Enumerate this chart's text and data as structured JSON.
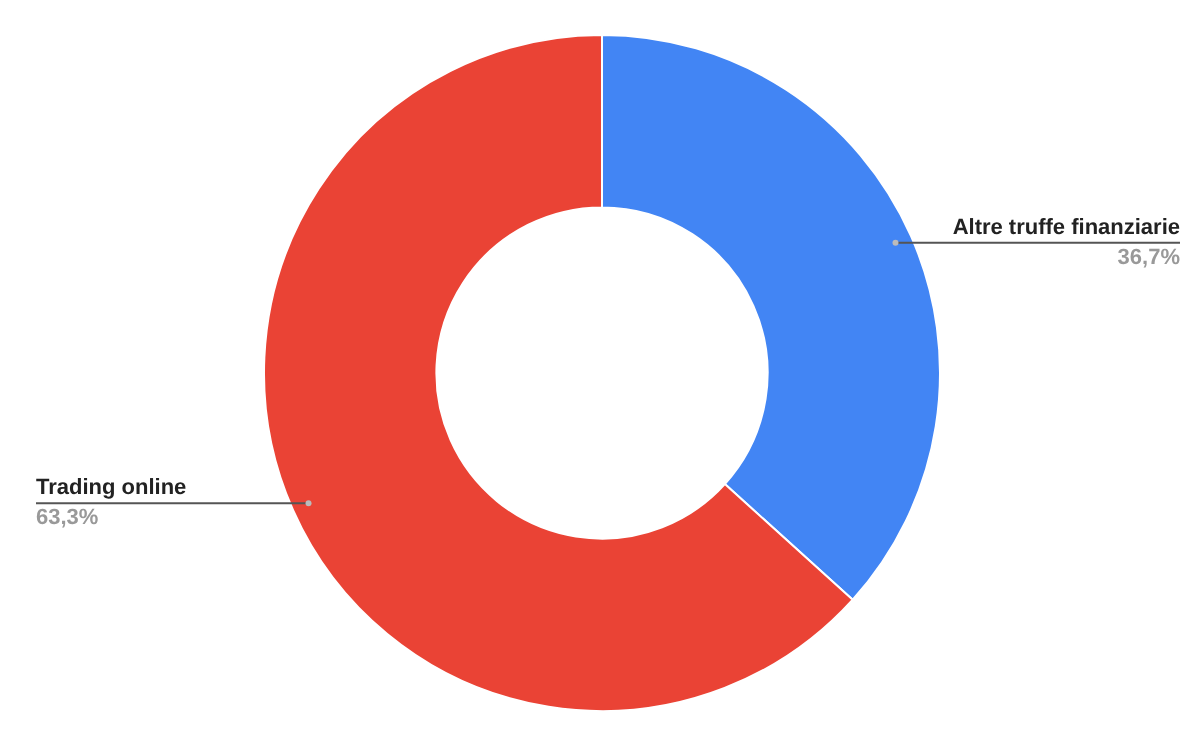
{
  "chart_data": {
    "type": "donut",
    "categories": [
      "Altre truffe finanziarie",
      "Trading online"
    ],
    "values": [
      36.7,
      63.3
    ],
    "colors": [
      "#4285f4",
      "#ea4335"
    ],
    "value_labels": [
      "36,7%",
      "63,3%"
    ],
    "legend": false
  }
}
